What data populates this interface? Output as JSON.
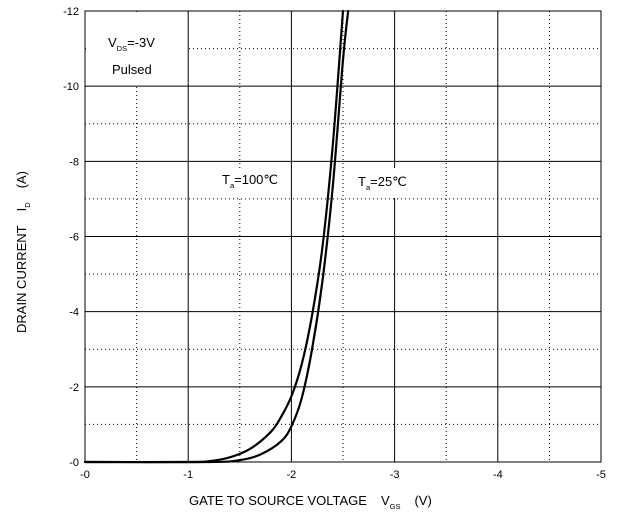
{
  "chart_data": {
    "type": "line",
    "xlabel": "GATE TO SOURCE VOLTAGE",
    "xlabel_symbol": "V",
    "xlabel_subscript": "GS",
    "xlabel_unit": "(V)",
    "ylabel": "DRAIN CURRENT",
    "ylabel_symbol": "I",
    "ylabel_subscript": "D",
    "ylabel_unit": "(A)",
    "xlim": [
      0,
      -5
    ],
    "ylim": [
      0,
      -12
    ],
    "xticks": [
      "-0",
      "-1",
      "-2",
      "-3",
      "-4",
      "-5"
    ],
    "yticks": [
      "-0",
      "-2",
      "-4",
      "-6",
      "-8",
      "-10",
      "-12"
    ],
    "grid": true,
    "annotations": {
      "vds_symbol": "V",
      "vds_subscript": "DS",
      "vds_value": "=-3V",
      "pulsed": "Pulsed",
      "ta100_symbol": "T",
      "ta100_subscript": "a",
      "ta100_value": "=100℃",
      "ta25_symbol": "T",
      "ta25_subscript": "a",
      "ta25_value": "=25℃"
    },
    "series": [
      {
        "name": "Ta=100℃",
        "x": [
          0,
          -1.0,
          -1.2,
          -1.4,
          -1.6,
          -1.8,
          -1.9,
          -2.0,
          -2.1,
          -2.2,
          -2.3,
          -2.4,
          -2.5
        ],
        "y": [
          0,
          0,
          -0.02,
          -0.12,
          -0.35,
          -0.8,
          -1.2,
          -1.75,
          -2.6,
          -3.9,
          -5.7,
          -8.4,
          -12.0
        ]
      },
      {
        "name": "Ta=25℃",
        "x": [
          0,
          -1.2,
          -1.5,
          -1.7,
          -1.9,
          -2.0,
          -2.1,
          -2.2,
          -2.3,
          -2.4,
          -2.5,
          -2.55
        ],
        "y": [
          0,
          0,
          -0.05,
          -0.2,
          -0.55,
          -0.95,
          -1.7,
          -3.0,
          -4.8,
          -7.3,
          -10.7,
          -12.0
        ]
      }
    ]
  }
}
